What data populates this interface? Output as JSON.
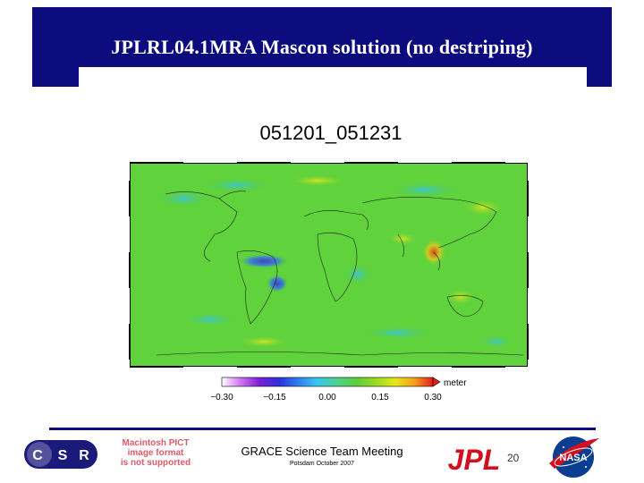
{
  "slide": {
    "title": "JPLRL04.1MRA Mascon solution (no destriping)"
  },
  "plot": {
    "title": "051201_051231",
    "colorbar": {
      "unit": "meter",
      "ticks": [
        "−0.30",
        "−0.15",
        "0.00",
        "0.15",
        "0.30"
      ],
      "colors": [
        "#ffffff",
        "#d070f0",
        "#7a1fd6",
        "#2f2fd8",
        "#2e7df0",
        "#39c6f0",
        "#4fd28a",
        "#5ccf3a",
        "#9bd91f",
        "#e3e81a",
        "#f5a21a",
        "#e5201c"
      ]
    }
  },
  "footer": {
    "meeting_name": "GRACE Science Team Meeting",
    "meeting_location": "Potsdam October 2007",
    "placeholder_lines": [
      "Macintosh PICT",
      "image format",
      "is not supported"
    ],
    "page_number": "20",
    "logos": {
      "csr": [
        "C",
        "S",
        "R"
      ],
      "jpl": "JPL",
      "nasa": "NASA"
    }
  },
  "colors": {
    "header_band": "#0c0c7e",
    "map_background": "#5fd23c",
    "jpl_red": "#d20f1e",
    "nasa_blue": "#0b3d91"
  }
}
